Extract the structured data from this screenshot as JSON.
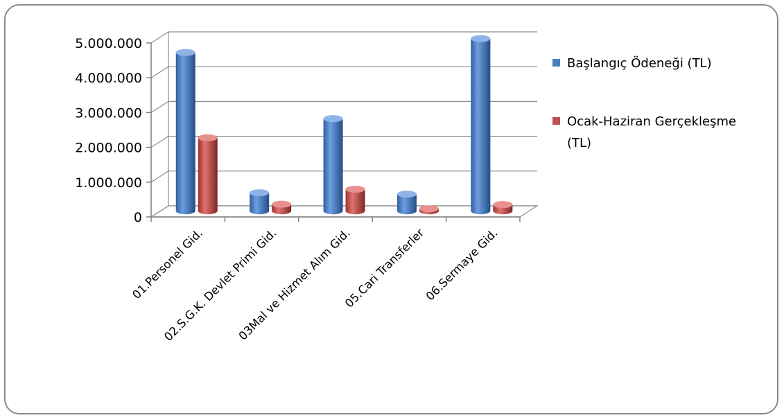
{
  "chart_data": {
    "type": "bar",
    "style": "3d-cylinder",
    "categories": [
      "01.Personel Gid.",
      "02.S.G.K. Devlet Primi Gid.",
      "03Mal ve Hizmet Alım Gid.",
      "05.Cari Transferler",
      "06.Sermaye Gid."
    ],
    "series": [
      {
        "name": "Başlangıç Ödeneği (TL)",
        "values": [
          4550000,
          520000,
          2650000,
          480000,
          4950000
        ],
        "color": "#4a7ebb"
      },
      {
        "name": "Ocak-Haziran Gerçekleşme (TL)",
        "values": [
          2100000,
          190000,
          620000,
          60000,
          180000
        ],
        "color": "#c0504d"
      }
    ],
    "ylim": [
      0,
      5000000
    ],
    "yticks": [
      0,
      1000000,
      2000000,
      3000000,
      4000000,
      5000000
    ],
    "ytick_labels": [
      "0",
      "1.000.000",
      "2.000.000",
      "3.000.000",
      "4.000.000",
      "5.000.000"
    ],
    "grid": true,
    "legend": {
      "position": "right",
      "lines": [
        [
          "Başlangıç Ödeneği (TL)"
        ],
        [
          "Ocak-Haziran Gerçekleşme",
          "(TL)"
        ]
      ]
    },
    "title": "",
    "xlabel": "",
    "ylabel": ""
  }
}
